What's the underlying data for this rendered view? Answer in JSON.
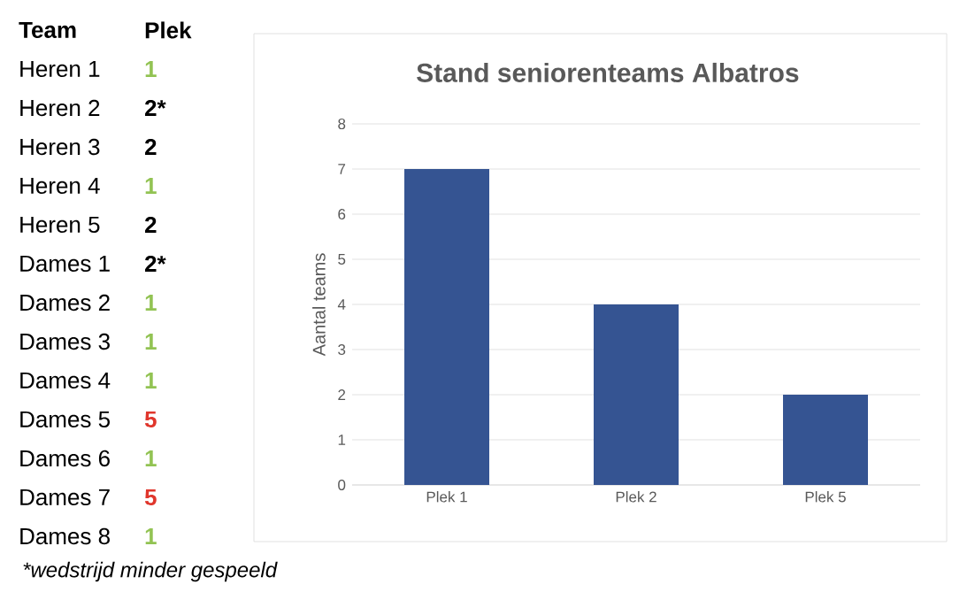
{
  "chart_data": [
    {
      "type": "other",
      "xlabel": "Team",
      "ylabel": "Plek",
      "categories": [
        "Heren 1",
        "Heren 2",
        "Heren 3",
        "Heren 4",
        "Heren 5",
        "Dames 1",
        "Dames 2",
        "Dames 3",
        "Dames 4",
        "Dames 5",
        "Dames 6",
        "Dames 7",
        "Dames 8"
      ],
      "value_labels": [
        "1",
        "2*",
        "2",
        "1",
        "2",
        "2*",
        "1",
        "1",
        "1",
        "5",
        "1",
        "5",
        "1"
      ],
      "colors": [
        "#92c353",
        "#000000",
        "#000000",
        "#92c353",
        "#000000",
        "#000000",
        "#92c353",
        "#92c353",
        "#92c353",
        "#e0362c",
        "#92c353",
        "#e0362c",
        "#92c353"
      ],
      "annotations": [
        "*wedstrijd minder gespeeld"
      ]
    },
    {
      "type": "bar",
      "title": "Stand seniorenteams Albatros",
      "ylabel": "Aantal teams",
      "categories": [
        "Plek 1",
        "Plek 2",
        "Plek 5"
      ],
      "values": [
        7,
        4,
        2
      ],
      "color": "#355492",
      "ylim": [
        0,
        8
      ],
      "yticks": [
        0,
        1,
        2,
        3,
        4,
        5,
        6,
        7,
        8
      ],
      "grid": "y"
    }
  ]
}
